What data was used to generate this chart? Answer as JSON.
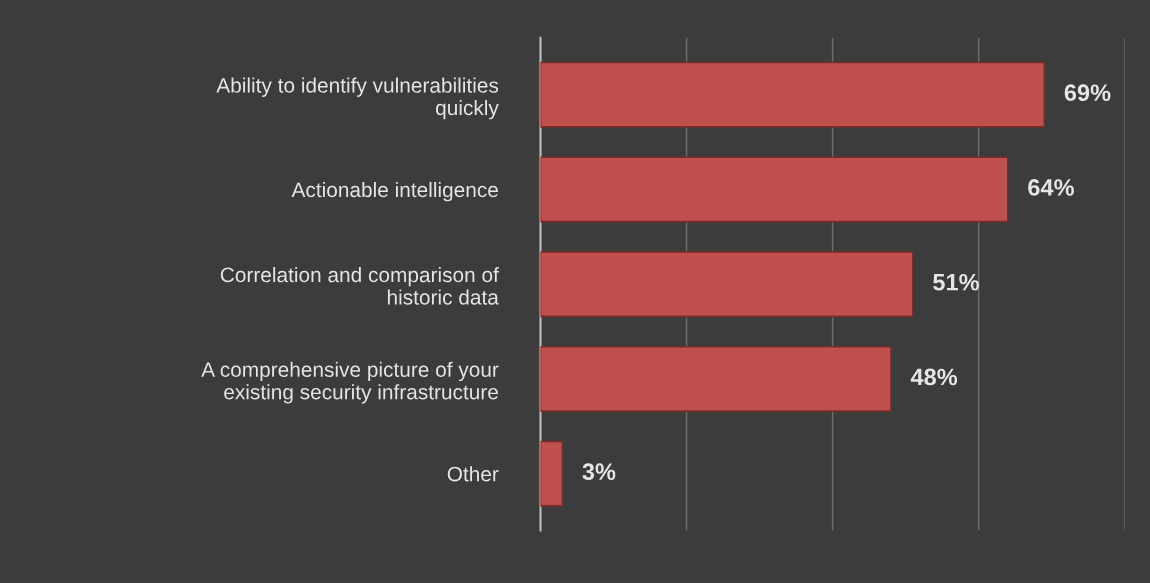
{
  "chart_data": {
    "type": "bar",
    "orientation": "horizontal",
    "categories": [
      "Ability to identify vulnerabilities\nquickly",
      "Actionable intelligence",
      "Correlation and comparison of\nhistoric data",
      "A comprehensive picture of your\nexisting security infrastructure",
      "Other"
    ],
    "values": [
      69,
      64,
      51,
      48,
      3
    ],
    "value_labels": [
      "69%",
      "64%",
      "51%",
      "48%",
      "3%"
    ],
    "color": "#c0504d",
    "xlim": [
      0,
      80
    ],
    "xticks": [
      {
        "value": 0,
        "label": null
      },
      {
        "value": 20,
        "label": null
      },
      {
        "value": 40,
        "label": null
      },
      {
        "value": 60,
        "label": null
      },
      {
        "value": 80,
        "label": null
      }
    ],
    "grid": "x",
    "tick_labels": "y",
    "legend": false
  }
}
